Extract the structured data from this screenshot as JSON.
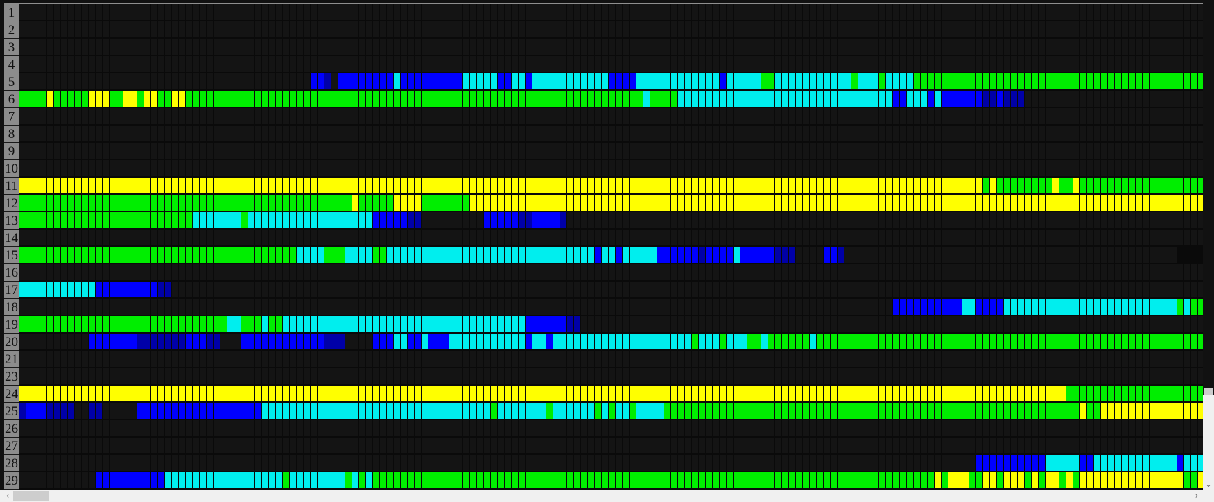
{
  "grid": {
    "columns": 171,
    "palette": {
      "K": "#141414",
      "G": "#00ee00",
      "Y": "#ffff00",
      "C": "#00eeee",
      "B": "#0000ff",
      "D": "#0000a8"
    },
    "rows": [
      {
        "label": "1",
        "runs": [
          [
            "K",
            171
          ]
        ]
      },
      {
        "label": "2",
        "runs": [
          [
            "K",
            171
          ]
        ]
      },
      {
        "label": "3",
        "runs": [
          [
            "K",
            171
          ]
        ]
      },
      {
        "label": "4",
        "runs": [
          [
            "K",
            171
          ]
        ]
      },
      {
        "label": "5",
        "runs": [
          [
            "K",
            42
          ],
          [
            "B",
            2
          ],
          [
            "D",
            1
          ],
          [
            "K",
            1
          ],
          [
            "B",
            8
          ],
          [
            "C",
            1
          ],
          [
            "B",
            9
          ],
          [
            "C",
            5
          ],
          [
            "B",
            2
          ],
          [
            "C",
            2
          ],
          [
            "B",
            1
          ],
          [
            "C",
            11
          ],
          [
            "B",
            4
          ],
          [
            "C",
            12
          ],
          [
            "B",
            1
          ],
          [
            "C",
            5
          ],
          [
            "G",
            2
          ],
          [
            "C",
            11
          ],
          [
            "G",
            1
          ],
          [
            "C",
            3
          ],
          [
            "G",
            1
          ],
          [
            "C",
            4
          ],
          [
            "G",
            42
          ]
        ]
      },
      {
        "label": "6",
        "runs": [
          [
            "G",
            4
          ],
          [
            "Y",
            1
          ],
          [
            "G",
            5
          ],
          [
            "Y",
            3
          ],
          [
            "G",
            2
          ],
          [
            "Y",
            2
          ],
          [
            "G",
            1
          ],
          [
            "Y",
            2
          ],
          [
            "G",
            2
          ],
          [
            "Y",
            2
          ],
          [
            "G",
            59
          ],
          [
            "G",
            7
          ],
          [
            "C",
            1
          ],
          [
            "G",
            4
          ],
          [
            "C",
            31
          ],
          [
            "B",
            2
          ],
          [
            "C",
            3
          ],
          [
            "B",
            1
          ],
          [
            "C",
            1
          ],
          [
            "B",
            6
          ],
          [
            "D",
            2
          ],
          [
            "B",
            1
          ],
          [
            "D",
            3
          ],
          [
            "K",
            26
          ]
        ]
      },
      {
        "label": "7",
        "runs": [
          [
            "K",
            171
          ]
        ]
      },
      {
        "label": "8",
        "runs": [
          [
            "K",
            171
          ]
        ]
      },
      {
        "label": "9",
        "runs": [
          [
            "K",
            171
          ]
        ]
      },
      {
        "label": "10",
        "runs": [
          [
            "K",
            171
          ]
        ]
      },
      {
        "label": "11",
        "runs": [
          [
            "Y",
            139
          ],
          [
            "G",
            1
          ],
          [
            "Y",
            1
          ],
          [
            "G",
            8
          ],
          [
            "Y",
            1
          ],
          [
            "G",
            2
          ],
          [
            "Y",
            1
          ],
          [
            "G",
            18
          ]
        ]
      },
      {
        "label": "12",
        "runs": [
          [
            "G",
            48
          ],
          [
            "Y",
            1
          ],
          [
            "G",
            5
          ],
          [
            "Y",
            4
          ],
          [
            "G",
            7
          ],
          [
            "Y",
            106
          ]
        ]
      },
      {
        "label": "13",
        "runs": [
          [
            "G",
            25
          ],
          [
            "C",
            7
          ],
          [
            "G",
            1
          ],
          [
            "C",
            18
          ],
          [
            "B",
            5
          ],
          [
            "D",
            2
          ],
          [
            "K",
            9
          ],
          [
            "B",
            5
          ],
          [
            "D",
            2
          ],
          [
            "B",
            4
          ],
          [
            "D",
            1
          ],
          [
            "K",
            92
          ]
        ]
      },
      {
        "label": "14",
        "runs": [
          [
            "K",
            171
          ]
        ]
      },
      {
        "label": "15",
        "runs": [
          [
            "G",
            40
          ],
          [
            "C",
            4
          ],
          [
            "G",
            3
          ],
          [
            "C",
            4
          ],
          [
            "G",
            2
          ],
          [
            "C",
            30
          ],
          [
            "B",
            1
          ],
          [
            "C",
            2
          ],
          [
            "B",
            1
          ],
          [
            "C",
            5
          ],
          [
            "B",
            6
          ],
          [
            "D",
            1
          ],
          [
            "B",
            4
          ],
          [
            "C",
            1
          ],
          [
            "B",
            5
          ],
          [
            "D",
            3
          ],
          [
            "K",
            4
          ],
          [
            "B",
            2
          ],
          [
            "D",
            1
          ],
          [
            "K",
            48
          ]
        ]
      },
      {
        "label": "16",
        "runs": [
          [
            "K",
            171
          ]
        ]
      },
      {
        "label": "17",
        "runs": [
          [
            "C",
            11
          ],
          [
            "B",
            9
          ],
          [
            "D",
            2
          ],
          [
            "K",
            149
          ]
        ]
      },
      {
        "label": "18",
        "runs": [
          [
            "K",
            126
          ],
          [
            "B",
            10
          ],
          [
            "C",
            2
          ],
          [
            "B",
            4
          ],
          [
            "C",
            25
          ],
          [
            "G",
            1
          ],
          [
            "C",
            1
          ],
          [
            "G",
            2
          ]
        ]
      },
      {
        "label": "19",
        "runs": [
          [
            "G",
            30
          ],
          [
            "C",
            2
          ],
          [
            "G",
            3
          ],
          [
            "C",
            1
          ],
          [
            "G",
            2
          ],
          [
            "C",
            35
          ],
          [
            "B",
            6
          ],
          [
            "D",
            2
          ],
          [
            "K",
            90
          ]
        ]
      },
      {
        "label": "20",
        "runs": [
          [
            "K",
            10
          ],
          [
            "B",
            7
          ],
          [
            "D",
            7
          ],
          [
            "B",
            3
          ],
          [
            "D",
            2
          ],
          [
            "K",
            3
          ],
          [
            "B",
            12
          ],
          [
            "D",
            3
          ],
          [
            "K",
            4
          ],
          [
            "B",
            3
          ],
          [
            "C",
            2
          ],
          [
            "B",
            2
          ],
          [
            "C",
            1
          ],
          [
            "B",
            3
          ],
          [
            "C",
            11
          ],
          [
            "B",
            1
          ],
          [
            "C",
            2
          ],
          [
            "B",
            1
          ],
          [
            "C",
            20
          ],
          [
            "G",
            1
          ],
          [
            "C",
            3
          ],
          [
            "G",
            1
          ],
          [
            "C",
            3
          ],
          [
            "G",
            2
          ],
          [
            "C",
            1
          ],
          [
            "G",
            6
          ],
          [
            "C",
            1
          ],
          [
            "G",
            56
          ]
        ]
      },
      {
        "label": "21",
        "runs": [
          [
            "K",
            171
          ]
        ]
      },
      {
        "label": "23",
        "runs": [
          [
            "K",
            171
          ]
        ]
      },
      {
        "label": "24",
        "runs": [
          [
            "Y",
            151
          ],
          [
            "G",
            20
          ]
        ]
      },
      {
        "label": "25",
        "runs": [
          [
            "D",
            1
          ],
          [
            "B",
            3
          ],
          [
            "D",
            4
          ],
          [
            "K",
            2
          ],
          [
            "D",
            2
          ],
          [
            "K",
            5
          ],
          [
            "B",
            18
          ],
          [
            "C",
            33
          ],
          [
            "G",
            1
          ],
          [
            "C",
            7
          ],
          [
            "G",
            1
          ],
          [
            "C",
            6
          ],
          [
            "G",
            1
          ],
          [
            "C",
            1
          ],
          [
            "G",
            1
          ],
          [
            "C",
            2
          ],
          [
            "G",
            1
          ],
          [
            "C",
            4
          ],
          [
            "G",
            60
          ],
          [
            "Y",
            1
          ],
          [
            "G",
            2
          ],
          [
            "Y",
            15
          ]
        ]
      },
      {
        "label": "26",
        "runs": [
          [
            "K",
            171
          ]
        ]
      },
      {
        "label": "27",
        "runs": [
          [
            "K",
            171
          ]
        ]
      },
      {
        "label": "28",
        "runs": [
          [
            "K",
            138
          ],
          [
            "B",
            10
          ],
          [
            "C",
            5
          ],
          [
            "B",
            2
          ],
          [
            "C",
            12
          ],
          [
            "B",
            1
          ],
          [
            "C",
            3
          ]
        ]
      },
      {
        "label": "29",
        "runs": [
          [
            "K",
            11
          ],
          [
            "B",
            10
          ],
          [
            "C",
            17
          ],
          [
            "G",
            1
          ],
          [
            "C",
            8
          ],
          [
            "G",
            1
          ],
          [
            "C",
            1
          ],
          [
            "G",
            1
          ],
          [
            "C",
            1
          ],
          [
            "G",
            81
          ],
          [
            "Y",
            1
          ],
          [
            "G",
            1
          ],
          [
            "Y",
            3
          ],
          [
            "G",
            2
          ],
          [
            "Y",
            2
          ],
          [
            "G",
            1
          ],
          [
            "Y",
            3
          ],
          [
            "G",
            1
          ],
          [
            "Y",
            1
          ],
          [
            "G",
            1
          ],
          [
            "Y",
            2
          ],
          [
            "G",
            1
          ],
          [
            "Y",
            1
          ],
          [
            "G",
            1
          ],
          [
            "Y",
            15
          ],
          [
            "G",
            2
          ],
          [
            "Y",
            1
          ]
        ]
      }
    ]
  },
  "scrollbars": {
    "left_arrow": "‹",
    "right_arrow": "›",
    "down_arrow": "⌄"
  }
}
